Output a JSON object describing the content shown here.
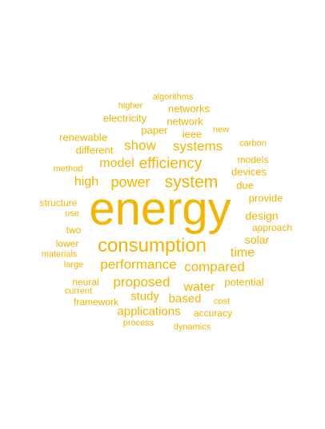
{
  "colors": {
    "background": "#ffffff",
    "word_color": "#f4b400"
  },
  "words": [
    {
      "text": "energy",
      "weight": 1.0
    },
    {
      "text": "consumption",
      "weight": 0.44
    },
    {
      "text": "system",
      "weight": 0.36
    },
    {
      "text": "efficiency",
      "weight": 0.33
    },
    {
      "text": "power",
      "weight": 0.32
    },
    {
      "text": "performance",
      "weight": 0.3
    },
    {
      "text": "proposed",
      "weight": 0.3
    },
    {
      "text": "show",
      "weight": 0.29
    },
    {
      "text": "systems",
      "weight": 0.29
    },
    {
      "text": "model",
      "weight": 0.28
    },
    {
      "text": "high",
      "weight": 0.28
    },
    {
      "text": "compared",
      "weight": 0.29
    },
    {
      "text": "water",
      "weight": 0.27
    },
    {
      "text": "time",
      "weight": 0.27
    },
    {
      "text": "study",
      "weight": 0.26
    },
    {
      "text": "based",
      "weight": 0.26
    },
    {
      "text": "applications",
      "weight": 0.25
    },
    {
      "text": "design",
      "weight": 0.24
    },
    {
      "text": "solar",
      "weight": 0.24
    },
    {
      "text": "electricity",
      "weight": 0.23
    },
    {
      "text": "network",
      "weight": 0.23
    },
    {
      "text": "paper",
      "weight": 0.23
    },
    {
      "text": "networks",
      "weight": 0.22
    },
    {
      "text": "devices",
      "weight": 0.22
    },
    {
      "text": "due",
      "weight": 0.22
    },
    {
      "text": "renewable",
      "weight": 0.22
    },
    {
      "text": "ieee",
      "weight": 0.22
    },
    {
      "text": "different",
      "weight": 0.22
    },
    {
      "text": "potential",
      "weight": 0.22
    },
    {
      "text": "provide",
      "weight": 0.21
    },
    {
      "text": "framework",
      "weight": 0.21
    },
    {
      "text": "structure",
      "weight": 0.2
    },
    {
      "text": "models",
      "weight": 0.2
    },
    {
      "text": "two",
      "weight": 0.2
    },
    {
      "text": "lower",
      "weight": 0.2
    },
    {
      "text": "approach",
      "weight": 0.2
    },
    {
      "text": "neural",
      "weight": 0.2
    },
    {
      "text": "accuracy",
      "weight": 0.2
    },
    {
      "text": "method",
      "weight": 0.19
    },
    {
      "text": "higher",
      "weight": 0.19
    },
    {
      "text": "carbon",
      "weight": 0.19
    },
    {
      "text": "use",
      "weight": 0.19
    },
    {
      "text": "materials",
      "weight": 0.19
    },
    {
      "text": "large",
      "weight": 0.19
    },
    {
      "text": "process",
      "weight": 0.19
    },
    {
      "text": "cost",
      "weight": 0.19
    },
    {
      "text": "algorithms",
      "weight": 0.18
    },
    {
      "text": "new",
      "weight": 0.18
    },
    {
      "text": "current",
      "weight": 0.18
    },
    {
      "text": "dynamics",
      "weight": 0.18
    }
  ]
}
